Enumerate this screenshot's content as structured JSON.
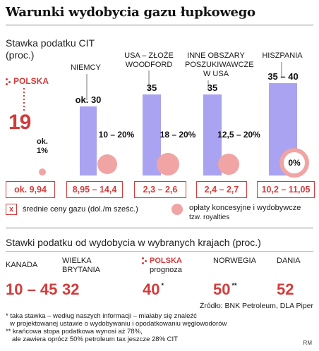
{
  "title": "Warunki wydobycia gazu łupkowego",
  "cit": {
    "subtitle_line1": "Stawka podatku CIT",
    "subtitle_line2": "(proc.)",
    "polska_label": "POLSKA",
    "polska_value": "19",
    "polska_small": "ok.\n1%",
    "columns": [
      {
        "label": "NIEMCY",
        "value": "ok. 30",
        "royalty": "10 – 20%",
        "gas": "8,95 – 14,4"
      },
      {
        "label": "USA – ZŁOŻE\nWOODFORD",
        "value": "35",
        "royalty": "18 – 20%",
        "gas": "2,3 – 2,6"
      },
      {
        "label": "INNE OBSZARY\nPOSZUKIWAWCZE\nW USA",
        "value": "35",
        "royalty": "12,5 – 20%",
        "gas": "2,4 – 2,7"
      },
      {
        "label": "HISZPANIA",
        "value": "35 – 40",
        "royalty": "0%",
        "gas": "10,2 – 11,05"
      }
    ],
    "polska_gas": "ok. 9,94"
  },
  "legend": {
    "gas_symbol": "x",
    "gas_text": "średnie ceny gazu (dol./m sześc.)",
    "royalty_text_line1": "opłaty koncesyjne i wydobywcze",
    "royalty_text_line2": "tzw. royalties"
  },
  "extraction": {
    "subtitle": "Stawki podatku od wydobycia w wybranych krajach (proc.)",
    "countries": [
      {
        "name": "KANADA",
        "value": "10 – 45",
        "mark": ""
      },
      {
        "name": "WIELKA\nBRYTANIA",
        "value": "32",
        "mark": ""
      },
      {
        "name": "POLSKA",
        "sub": "prognoza",
        "value": "40",
        "mark": "*"
      },
      {
        "name": "NORWEGIA",
        "value": "50",
        "mark": "**"
      },
      {
        "name": "DANIA",
        "value": "52",
        "mark": ""
      }
    ]
  },
  "source": "Źródło: BNK Petroleum, DLA Piper",
  "notes": [
    "* taka stawka – według naszych informacji – miałaby się znaleźć",
    "w projektowanej ustawie o wydobywaniu i opodatkowaniu węglowodorów",
    "** krańcowa stopa podatkowa wynosi aż 78%,",
    "ale zawiera oprócz 50% petroleum tax jeszcze 28% CIT"
  ],
  "author": "RM",
  "colors": {
    "bar": "#a9a3f1",
    "royalty": "#f0a4a4",
    "accent": "#d43b3b"
  },
  "chart_data": {
    "type": "bar",
    "categories": [
      "POLSKA",
      "NIEMCY",
      "USA – ZŁOŻE WOODFORD",
      "INNE OBSZARY POSZUKIWAWCZE W USA",
      "HISZPANIA"
    ],
    "series": [
      {
        "values": [
          19,
          30,
          35,
          35,
          40
        ]
      }
    ],
    "value_labels": [
      "19",
      "ok. 30",
      "35",
      "35",
      "35 – 40"
    ],
    "ylabel": "Stawka podatku CIT (proc.)",
    "ylim": [
      0,
      40
    ],
    "royalties": [
      "ok. 1%",
      "10 – 20%",
      "18 – 20%",
      "12,5 – 20%",
      "0%"
    ],
    "gas_prices": [
      "ok. 9,94",
      "8,95 – 14,4",
      "2,3 – 2,6",
      "2,4 – 2,7",
      "10,2 – 11,05"
    ]
  }
}
